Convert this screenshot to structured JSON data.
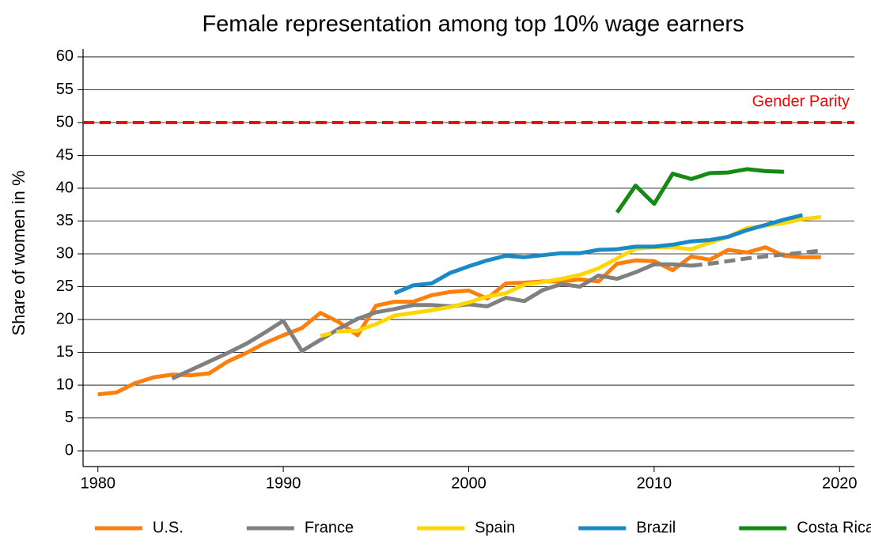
{
  "chart_data": {
    "type": "line",
    "title": "Female representation among top 10% wage earners",
    "y_label": "Share of women in %",
    "x": [
      1980,
      1981,
      1982,
      1983,
      1984,
      1985,
      1986,
      1987,
      1988,
      1989,
      1990,
      1991,
      1992,
      1993,
      1994,
      1995,
      1996,
      1997,
      1998,
      1999,
      2000,
      2001,
      2002,
      2003,
      2004,
      2005,
      2006,
      2007,
      2008,
      2009,
      2010,
      2011,
      2012,
      2013,
      2014,
      2015,
      2016,
      2017,
      2018,
      2019
    ],
    "series": [
      {
        "name": "U.S.",
        "color": "#ff7f0e",
        "values": [
          8.6,
          8.9,
          10.3,
          11.2,
          11.6,
          11.5,
          11.8,
          13.6,
          14.9,
          16.4,
          17.6,
          18.7,
          21.0,
          19.6,
          17.6,
          22.1,
          22.7,
          22.7,
          23.7,
          24.2,
          24.4,
          23.2,
          25.5,
          25.6,
          25.8,
          25.8,
          26.1,
          25.8,
          28.5,
          29.0,
          28.9,
          27.5,
          29.6,
          29.1,
          30.6,
          30.2,
          31.0,
          29.7,
          29.5,
          29.5
        ]
      },
      {
        "name": "France",
        "color": "#808080",
        "dash_from": 2012,
        "values": [
          null,
          null,
          null,
          null,
          11.0,
          12.3,
          13.6,
          14.9,
          16.3,
          18.0,
          19.8,
          15.2,
          16.9,
          18.6,
          20.1,
          21.1,
          21.6,
          22.2,
          22.2,
          22.0,
          22.3,
          22.0,
          23.3,
          22.8,
          24.5,
          25.4,
          25.0,
          26.7,
          26.2,
          27.2,
          28.4,
          28.4,
          28.2,
          28.5,
          28.9,
          29.3,
          29.6,
          29.9,
          30.2,
          30.5
        ]
      },
      {
        "name": "Spain",
        "color": "#ffd700",
        "dash_until": 1993,
        "values": [
          null,
          null,
          null,
          null,
          null,
          null,
          null,
          null,
          null,
          null,
          null,
          null,
          17.5,
          18.2,
          18.3,
          19.3,
          20.6,
          21.0,
          21.4,
          21.9,
          22.6,
          23.5,
          24.0,
          25.3,
          25.7,
          26.2,
          26.8,
          27.8,
          29.3,
          30.8,
          31.0,
          31.0,
          30.7,
          31.7,
          32.6,
          33.9,
          34.3,
          34.7,
          35.3,
          35.6
        ]
      },
      {
        "name": "Brazil",
        "color": "#1a8ac6",
        "values": [
          null,
          null,
          null,
          null,
          null,
          null,
          null,
          null,
          null,
          null,
          null,
          null,
          null,
          null,
          null,
          null,
          24.0,
          25.2,
          25.5,
          27.1,
          28.1,
          29.0,
          29.7,
          29.5,
          29.8,
          30.1,
          30.1,
          30.6,
          30.7,
          31.1,
          31.1,
          31.4,
          31.9,
          32.1,
          32.6,
          33.6,
          34.4,
          35.2,
          35.9,
          null
        ]
      },
      {
        "name": "Costa Rica",
        "color": "#138a13",
        "values": [
          null,
          null,
          null,
          null,
          null,
          null,
          null,
          null,
          null,
          null,
          null,
          null,
          null,
          null,
          null,
          null,
          null,
          null,
          null,
          null,
          null,
          null,
          null,
          null,
          null,
          null,
          null,
          null,
          36.3,
          40.4,
          37.6,
          42.2,
          41.4,
          42.3,
          42.4,
          42.9,
          42.6,
          42.5,
          null,
          null
        ]
      }
    ],
    "reference": {
      "value": 50,
      "label": "Gender Parity",
      "color": "#ff0000"
    },
    "xlim": [
      1979.2,
      2020.8
    ],
    "xticks": [
      1980,
      1990,
      2000,
      2010,
      2020
    ],
    "ylim": [
      -2.4,
      61.2
    ],
    "yticks": [
      0,
      5,
      10,
      15,
      20,
      25,
      30,
      35,
      40,
      45,
      50,
      55,
      60
    ],
    "grid": true,
    "legend": "bottom"
  }
}
